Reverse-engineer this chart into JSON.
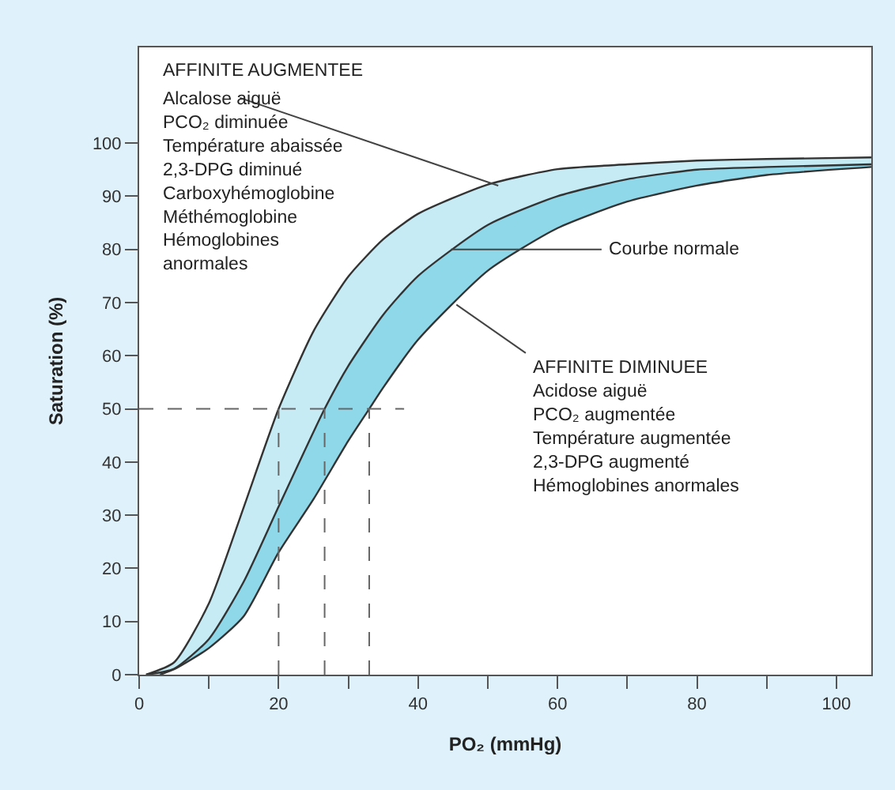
{
  "chart_data": {
    "type": "line",
    "xlabel": "PO₂ (mmHg)",
    "ylabel": "Saturation (%)",
    "xlim": [
      0,
      105
    ],
    "ylim": [
      0,
      118
    ],
    "xticks": [
      0,
      {
        "value": 10,
        "label": null
      },
      20,
      {
        "value": 30,
        "label": null
      },
      40,
      {
        "value": 50,
        "label": null
      },
      60,
      {
        "value": 70,
        "label": null
      },
      80,
      {
        "value": 90,
        "label": null
      },
      100
    ],
    "yticks": [
      0,
      10,
      20,
      30,
      40,
      50,
      60,
      70,
      80,
      90,
      100
    ],
    "marker": "none",
    "series": [
      {
        "type": "area",
        "color": "#c6ebf5",
        "x": [
          1,
          5,
          10,
          15,
          20,
          25,
          30,
          35,
          40,
          50,
          60,
          70,
          80,
          90,
          105
        ],
        "values": [
          0,
          2.3,
          13.4,
          31.5,
          50,
          64.6,
          74.9,
          81.9,
          86.7,
          92.2,
          95.1,
          96,
          96.7,
          97,
          97.3
        ]
      },
      {
        "type": "area",
        "color": "#8fd8ea",
        "x": [
          1,
          5,
          10,
          15,
          20,
          26.6,
          30,
          35,
          40,
          50,
          60,
          70,
          80,
          90,
          105
        ],
        "values": [
          0,
          1.1,
          6.7,
          17.5,
          31.6,
          50,
          58.1,
          67.7,
          75,
          84.6,
          90,
          93.2,
          95,
          95.5,
          96
        ]
      },
      {
        "type": "area",
        "color": "#ffffff",
        "x": [
          3,
          5,
          10,
          15,
          20,
          25,
          30,
          33,
          35,
          40,
          50,
          60,
          70,
          80,
          90,
          105
        ],
        "values": [
          0,
          1,
          5,
          11,
          23,
          33,
          44,
          50,
          54,
          63,
          76,
          84,
          89,
          92,
          94,
          95.5
        ]
      },
      {
        "color": "#666666",
        "line_style": "dashed",
        "x": [
          0,
          38
        ],
        "values": [
          50,
          50
        ]
      },
      {
        "color": "#666666",
        "line_style": "dashed",
        "x": [
          20,
          20
        ],
        "values": [
          0,
          50
        ]
      },
      {
        "color": "#666666",
        "line_style": "dashed",
        "x": [
          26.6,
          26.6
        ],
        "values": [
          0,
          50
        ]
      },
      {
        "color": "#666666",
        "line_style": "dashed",
        "x": [
          33,
          33
        ],
        "values": [
          0,
          50
        ]
      }
    ],
    "annotations": [
      {
        "text": "AFFINITE AUGMENTEE",
        "x": 51.5,
        "y": 92
      },
      "Alcalose aiguë\nPCO₂ diminuée\nTempérature abaissée\n2,3-DPG diminué\nCarboxyhémoglobine\nMéthémoglobine\nHémoglobines\nanormales",
      {
        "text": "Courbe normale",
        "x": 44.7,
        "y": 80
      },
      {
        "text": "AFFINITE DIMINUEE\nAcidose aiguë\nPCO₂ augmentée\nTempérature augmentée\n2,3-DPG augmenté\nHémoglobines anormales",
        "x": 45.5,
        "y": 69.6
      }
    ]
  }
}
